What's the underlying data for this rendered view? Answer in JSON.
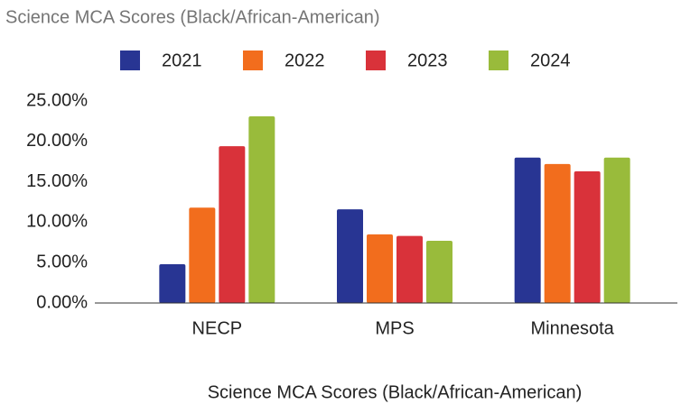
{
  "chart_data": {
    "type": "bar",
    "title": "Science MCA Scores (Black/African-American)",
    "x_label": "Science MCA Scores (Black/African-American)",
    "categories": [
      "NECP",
      "MPS",
      "Minnesota"
    ],
    "series": [
      {
        "name": "2021",
        "color": "#283593",
        "values": [
          4.8,
          11.6,
          18.0
        ]
      },
      {
        "name": "2022",
        "color": "#f26d1d",
        "values": [
          11.8,
          8.5,
          17.2
        ]
      },
      {
        "name": "2023",
        "color": "#d9323a",
        "values": [
          19.4,
          8.3,
          16.3
        ]
      },
      {
        "name": "2024",
        "color": "#99bb3b",
        "values": [
          23.1,
          7.7,
          18.0
        ]
      }
    ],
    "ylim": [
      0,
      25
    ],
    "yticks": [
      {
        "value": 0,
        "label": "0.00%"
      },
      {
        "value": 5,
        "label": "5.00%"
      },
      {
        "value": 10,
        "label": "10.00%"
      },
      {
        "value": 15,
        "label": "15.00%"
      },
      {
        "value": 20,
        "label": "20.00%"
      },
      {
        "value": 25,
        "label": "25.00%"
      }
    ],
    "grid": false,
    "legend": "top"
  }
}
